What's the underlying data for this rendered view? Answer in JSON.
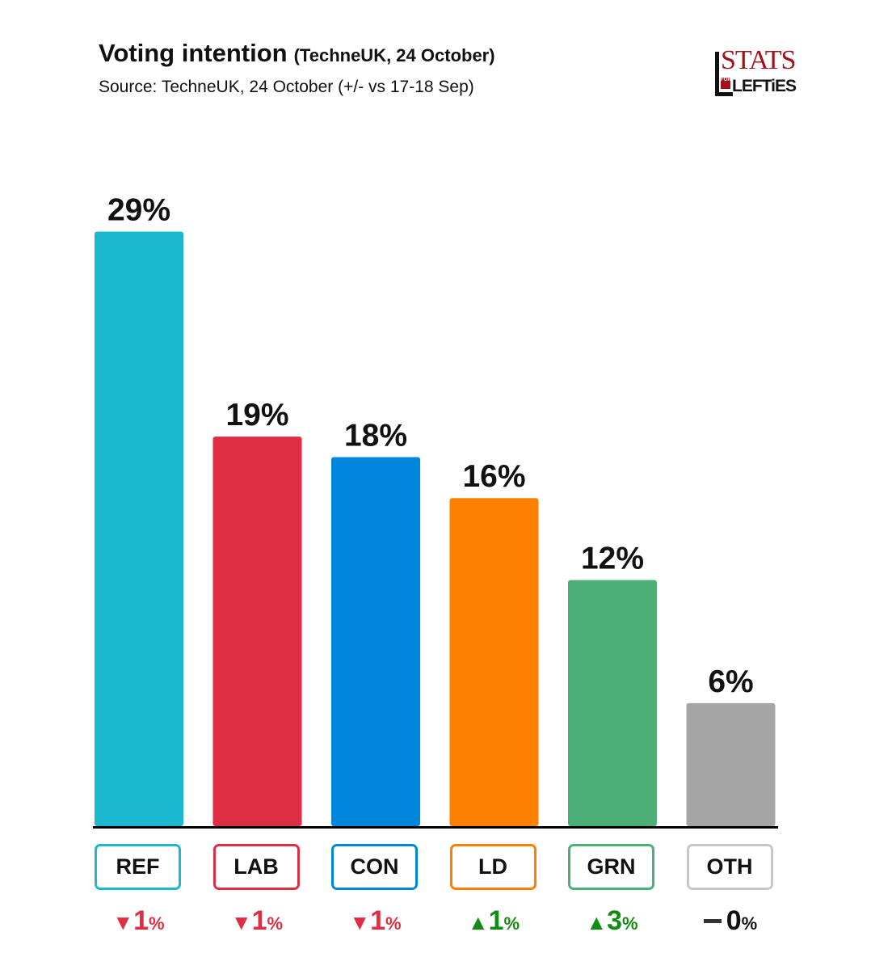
{
  "chart_data": {
    "type": "bar",
    "title": "Voting intention",
    "title_note": "(TechneUK, 24 October)",
    "subtitle": "Source: TechneUK, 24 October (+/- vs 17-18 Sep)",
    "categories": [
      "REF",
      "LAB",
      "CON",
      "LD",
      "GRN",
      "OTH"
    ],
    "values": [
      29,
      19,
      18,
      16,
      12,
      6
    ],
    "value_labels": [
      "29%",
      "19%",
      "18%",
      "16%",
      "12%",
      "6%"
    ],
    "colors": [
      "#1cb8d0",
      "#de2e44",
      "#0087dc",
      "#ff7f00",
      "#4caf76",
      "#a5a5a5"
    ],
    "border_colors": [
      "#1cb8d0",
      "#de2e44",
      "#0087dc",
      "#ff7f00",
      "#4caf76",
      "#c8c8c8"
    ],
    "changes": [
      {
        "direction": "down",
        "arrow": "▼",
        "number": "1",
        "unit": "%",
        "color": "#de2e44"
      },
      {
        "direction": "down",
        "arrow": "▼",
        "number": "1",
        "unit": "%",
        "color": "#de2e44"
      },
      {
        "direction": "down",
        "arrow": "▼",
        "number": "1",
        "unit": "%",
        "color": "#de2e44"
      },
      {
        "direction": "up",
        "arrow": "▲",
        "number": "1",
        "unit": "%",
        "color": "#128c12"
      },
      {
        "direction": "up",
        "arrow": "▲",
        "number": "3",
        "unit": "%",
        "color": "#128c12"
      },
      {
        "direction": "none",
        "arrow": "",
        "number": "0",
        "unit": "%",
        "color": "#111111"
      }
    ],
    "ylim": [
      0,
      29
    ],
    "xlabel": "",
    "ylabel": ""
  },
  "logo": {
    "stats": "STATS",
    "for": "FOR",
    "lefties": "LEFTiES",
    "color": "#a3111a"
  }
}
